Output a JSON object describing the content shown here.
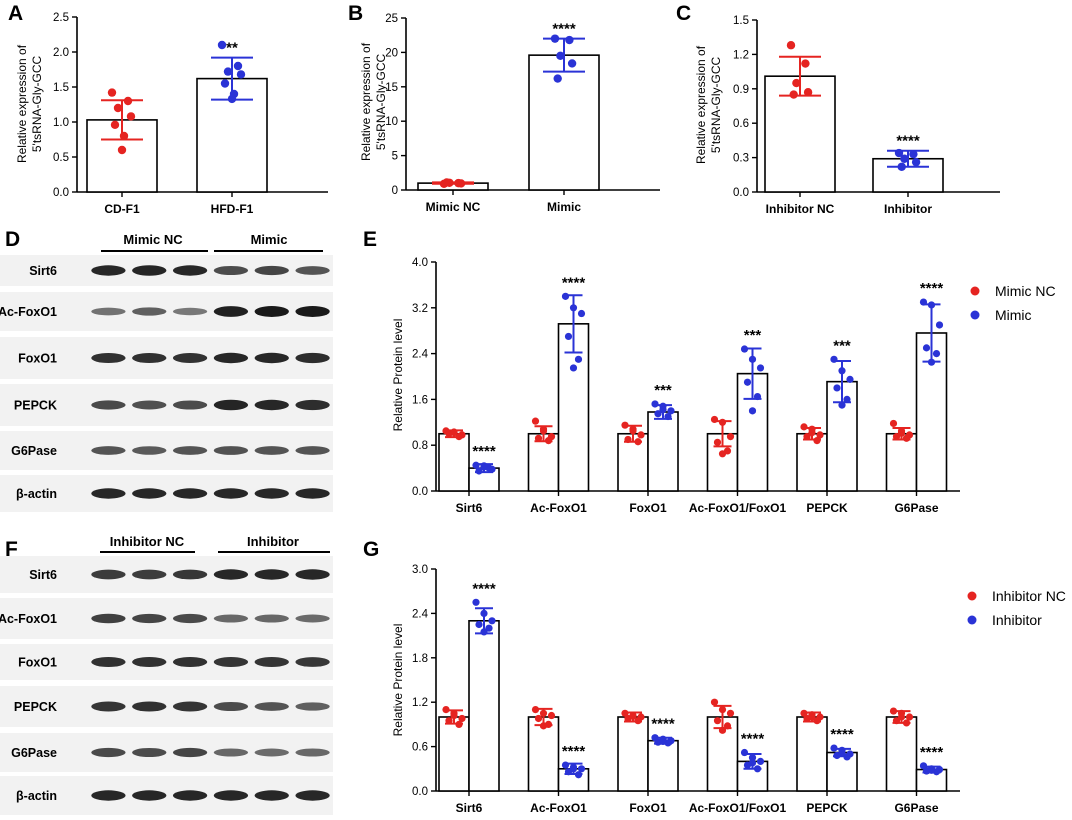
{
  "colors": {
    "ctrl": "#e52421",
    "treat": "#2a33d6",
    "axis": "#000000"
  },
  "panels": {
    "A": {
      "letter": "A",
      "ylabel": [
        "Relative expression of",
        "5'tsRNA-Gly-GCC"
      ]
    },
    "B": {
      "letter": "B",
      "ylabel": [
        "Relative expression of",
        "5'tsRNA-Gly-GCC"
      ]
    },
    "C": {
      "letter": "C",
      "ylabel": [
        "Relative expression of",
        "5'tsRNA-Gly-GCC"
      ]
    },
    "D": {
      "letter": "D",
      "groups": [
        "Mimic NC",
        "Mimic"
      ],
      "rows": [
        "Sirt6",
        "Ac-FoxO1",
        "FoxO1",
        "PEPCK",
        "G6Pase",
        "β-actin"
      ]
    },
    "E": {
      "letter": "E",
      "ylabel": [
        "Relative  Protein level"
      ]
    },
    "F": {
      "letter": "F",
      "groups": [
        "Inhibitor NC",
        "Inhibitor"
      ],
      "rows": [
        "Sirt6",
        "Ac-FoxO1",
        "FoxO1",
        "PEPCK",
        "G6Pase",
        "β-actin"
      ]
    },
    "G": {
      "letter": "G",
      "ylabel": [
        "Relative  Protein level"
      ]
    }
  },
  "chart_data": [
    {
      "id": "A",
      "type": "bar",
      "categories": [
        "CD-F1",
        "HFD-F1"
      ],
      "values": [
        1.03,
        1.62
      ],
      "errors": [
        0.28,
        0.3
      ],
      "points": [
        [
          1.42,
          1.3,
          1.2,
          1.08,
          0.96,
          0.8,
          0.6
        ],
        [
          2.1,
          1.8,
          1.72,
          1.68,
          1.55,
          1.4,
          1.33
        ]
      ],
      "ylim": [
        0,
        2.5
      ],
      "yticks": [
        "0.0",
        "0.5",
        "1.0",
        "1.5",
        "2.0",
        "2.5"
      ],
      "significance": [
        "",
        "**"
      ]
    },
    {
      "id": "B",
      "type": "bar",
      "categories": [
        "Mimic NC",
        "Mimic"
      ],
      "values": [
        1.0,
        19.6
      ],
      "errors": [
        0.1,
        2.4
      ],
      "points": [
        [
          0.9,
          1.0,
          1.05,
          0.95,
          1.1
        ],
        [
          22.0,
          21.8,
          19.5,
          18.4,
          16.2
        ]
      ],
      "ylim": [
        0,
        25
      ],
      "yticks": [
        "0",
        "5",
        "10",
        "15",
        "20",
        "25"
      ],
      "significance": [
        "",
        "****"
      ]
    },
    {
      "id": "C",
      "type": "bar",
      "categories": [
        "Inhibitor NC",
        "Inhibitor"
      ],
      "values": [
        1.01,
        0.29
      ],
      "errors": [
        0.17,
        0.07
      ],
      "points": [
        [
          1.28,
          1.12,
          0.95,
          0.87,
          0.85
        ],
        [
          0.34,
          0.33,
          0.29,
          0.26,
          0.22
        ]
      ],
      "ylim": [
        0,
        1.5
      ],
      "yticks": [
        "0.0",
        "0.3",
        "0.6",
        "0.9",
        "1.2",
        "1.5"
      ],
      "significance": [
        "",
        "****"
      ]
    },
    {
      "id": "E",
      "type": "bar",
      "categories": [
        "Sirt6",
        "Ac-FoxO1",
        "FoxO1",
        "Ac-FoxO1/FoxO1",
        "PEPCK",
        "G6Pase"
      ],
      "ylim": [
        0,
        4.0
      ],
      "yticks": [
        "0.0",
        "0.8",
        "1.6",
        "2.4",
        "3.2",
        "4.0"
      ],
      "legend_position": "top-right",
      "series": [
        {
          "name": "Mimic NC",
          "values": [
            1.0,
            1.0,
            1.0,
            1.0,
            1.0,
            1.0
          ],
          "errors": [
            0.06,
            0.13,
            0.14,
            0.22,
            0.1,
            0.1
          ],
          "points": [
            [
              1.05,
              1.02,
              0.98,
              1.0,
              0.95,
              1.03
            ],
            [
              1.22,
              1.08,
              0.95,
              0.92,
              0.88,
              1.05
            ],
            [
              1.15,
              1.05,
              0.98,
              0.9,
              0.86,
              1.08
            ],
            [
              1.25,
              1.2,
              0.95,
              0.85,
              0.7,
              0.65
            ],
            [
              1.12,
              1.08,
              0.98,
              0.95,
              0.88,
              1.02
            ],
            [
              1.18,
              1.05,
              0.98,
              0.95,
              0.92,
              1.01
            ]
          ]
        },
        {
          "name": "Mimic",
          "values": [
            0.4,
            2.92,
            1.38,
            2.05,
            1.91,
            2.76
          ],
          "errors": [
            0.07,
            0.5,
            0.12,
            0.44,
            0.36,
            0.5
          ],
          "points": [
            [
              0.45,
              0.42,
              0.38,
              0.35,
              0.4,
              0.44
            ],
            [
              3.4,
              3.2,
              3.1,
              2.7,
              2.3,
              2.15
            ],
            [
              1.52,
              1.48,
              1.4,
              1.35,
              1.3,
              1.42
            ],
            [
              2.48,
              2.3,
              2.15,
              1.9,
              1.65,
              1.4
            ],
            [
              2.3,
              2.1,
              1.95,
              1.8,
              1.6,
              1.5
            ],
            [
              3.3,
              3.25,
              2.9,
              2.5,
              2.4,
              2.25
            ]
          ]
        }
      ],
      "significance": [
        "****",
        "****",
        "***",
        "***",
        "***",
        "****"
      ]
    },
    {
      "id": "G",
      "type": "bar",
      "categories": [
        "Sirt6",
        "Ac-FoxO1",
        "FoxO1",
        "Ac-FoxO1/FoxO1",
        "PEPCK",
        "G6Pase"
      ],
      "ylim": [
        0,
        3.0
      ],
      "yticks": [
        "0.0",
        "0.6",
        "1.2",
        "1.8",
        "2.4",
        "3.0"
      ],
      "legend_position": "top-right",
      "series": [
        {
          "name": "Inhibitor NC",
          "values": [
            1.0,
            1.0,
            1.0,
            1.0,
            1.0,
            1.0
          ],
          "errors": [
            0.09,
            0.11,
            0.06,
            0.15,
            0.06,
            0.08
          ],
          "points": [
            [
              1.1,
              1.05,
              0.98,
              0.95,
              0.9,
              1.02
            ],
            [
              1.1,
              1.05,
              1.02,
              0.98,
              0.9,
              0.88
            ],
            [
              1.05,
              1.02,
              1.0,
              0.98,
              0.95,
              1.01
            ],
            [
              1.2,
              1.1,
              1.05,
              0.95,
              0.88,
              0.82
            ],
            [
              1.05,
              1.03,
              1.0,
              0.98,
              0.95,
              1.0
            ],
            [
              1.08,
              1.05,
              1.0,
              0.95,
              0.92,
              1.0
            ]
          ]
        },
        {
          "name": "Inhibitor",
          "values": [
            2.3,
            0.3,
            0.68,
            0.4,
            0.52,
            0.29
          ],
          "errors": [
            0.17,
            0.07,
            0.04,
            0.1,
            0.05,
            0.04
          ],
          "points": [
            [
              2.55,
              2.4,
              2.3,
              2.25,
              2.2,
              2.15
            ],
            [
              0.35,
              0.32,
              0.3,
              0.26,
              0.22,
              0.3
            ],
            [
              0.72,
              0.7,
              0.68,
              0.66,
              0.65,
              0.67
            ],
            [
              0.52,
              0.45,
              0.4,
              0.35,
              0.3,
              0.38
            ],
            [
              0.58,
              0.55,
              0.5,
              0.48,
              0.46,
              0.51
            ],
            [
              0.34,
              0.3,
              0.29,
              0.27,
              0.26,
              0.28
            ]
          ]
        }
      ],
      "significance": [
        "****",
        "****",
        "****",
        "****",
        "****",
        "****"
      ]
    }
  ]
}
